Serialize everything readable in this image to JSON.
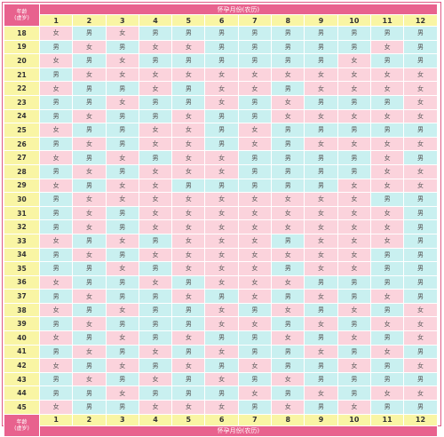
{
  "header": {
    "title": "怀孕月份(农历)",
    "age_label": "年龄\n(虚岁)"
  },
  "footer": {
    "title": "怀孕月份(农历)",
    "age_label": "年龄\n(虚岁)"
  },
  "months": [
    "1",
    "2",
    "3",
    "4",
    "5",
    "6",
    "7",
    "8",
    "9",
    "10",
    "11",
    "12"
  ],
  "labels": {
    "boy": "男",
    "girl": "女"
  },
  "colors": {
    "boy": "#c9f0f0",
    "girl": "#fbd3dc",
    "header": "#e8628e",
    "axis": "#f9f5a4"
  },
  "rows": [
    {
      "age": "18",
      "cells": [
        "女",
        "男",
        "女",
        "男",
        "男",
        "男",
        "男",
        "男",
        "男",
        "男",
        "男",
        "男"
      ]
    },
    {
      "age": "19",
      "cells": [
        "男",
        "女",
        "男",
        "女",
        "女",
        "男",
        "男",
        "男",
        "男",
        "男",
        "女",
        "男"
      ]
    },
    {
      "age": "20",
      "cells": [
        "女",
        "男",
        "女",
        "男",
        "男",
        "男",
        "男",
        "男",
        "男",
        "女",
        "男",
        "男"
      ]
    },
    {
      "age": "21",
      "cells": [
        "男",
        "女",
        "女",
        "女",
        "女",
        "女",
        "女",
        "女",
        "女",
        "女",
        "女",
        "女"
      ]
    },
    {
      "age": "22",
      "cells": [
        "女",
        "男",
        "男",
        "女",
        "男",
        "女",
        "女",
        "男",
        "女",
        "女",
        "女",
        "女"
      ]
    },
    {
      "age": "23",
      "cells": [
        "男",
        "男",
        "女",
        "男",
        "男",
        "女",
        "男",
        "女",
        "男",
        "男",
        "男",
        "女"
      ]
    },
    {
      "age": "24",
      "cells": [
        "男",
        "女",
        "男",
        "男",
        "女",
        "男",
        "男",
        "女",
        "女",
        "女",
        "女",
        "女"
      ]
    },
    {
      "age": "25",
      "cells": [
        "女",
        "男",
        "男",
        "女",
        "女",
        "男",
        "女",
        "男",
        "男",
        "男",
        "男",
        "男"
      ]
    },
    {
      "age": "26",
      "cells": [
        "男",
        "女",
        "男",
        "女",
        "女",
        "男",
        "女",
        "男",
        "女",
        "女",
        "女",
        "女"
      ]
    },
    {
      "age": "27",
      "cells": [
        "女",
        "男",
        "女",
        "男",
        "女",
        "女",
        "男",
        "男",
        "男",
        "男",
        "女",
        "男"
      ]
    },
    {
      "age": "28",
      "cells": [
        "男",
        "女",
        "男",
        "女",
        "女",
        "女",
        "男",
        "男",
        "男",
        "男",
        "女",
        "女"
      ]
    },
    {
      "age": "29",
      "cells": [
        "女",
        "男",
        "女",
        "女",
        "男",
        "男",
        "男",
        "男",
        "男",
        "女",
        "女",
        "女"
      ]
    },
    {
      "age": "30",
      "cells": [
        "男",
        "女",
        "女",
        "女",
        "女",
        "女",
        "女",
        "女",
        "女",
        "女",
        "男",
        "男"
      ]
    },
    {
      "age": "31",
      "cells": [
        "男",
        "女",
        "男",
        "女",
        "女",
        "女",
        "女",
        "女",
        "女",
        "女",
        "女",
        "男"
      ]
    },
    {
      "age": "32",
      "cells": [
        "男",
        "女",
        "男",
        "女",
        "女",
        "女",
        "女",
        "女",
        "女",
        "女",
        "女",
        "男"
      ]
    },
    {
      "age": "33",
      "cells": [
        "女",
        "男",
        "女",
        "男",
        "女",
        "女",
        "女",
        "男",
        "女",
        "女",
        "女",
        "男"
      ]
    },
    {
      "age": "34",
      "cells": [
        "男",
        "女",
        "男",
        "女",
        "女",
        "女",
        "女",
        "女",
        "女",
        "女",
        "男",
        "男"
      ]
    },
    {
      "age": "35",
      "cells": [
        "男",
        "男",
        "女",
        "男",
        "女",
        "女",
        "女",
        "男",
        "女",
        "女",
        "男",
        "男"
      ]
    },
    {
      "age": "36",
      "cells": [
        "女",
        "男",
        "男",
        "女",
        "男",
        "女",
        "女",
        "女",
        "男",
        "男",
        "男",
        "男"
      ]
    },
    {
      "age": "37",
      "cells": [
        "男",
        "女",
        "男",
        "男",
        "女",
        "男",
        "女",
        "男",
        "女",
        "男",
        "女",
        "男"
      ]
    },
    {
      "age": "38",
      "cells": [
        "女",
        "男",
        "女",
        "男",
        "男",
        "女",
        "男",
        "女",
        "男",
        "女",
        "男",
        "女"
      ]
    },
    {
      "age": "39",
      "cells": [
        "男",
        "女",
        "男",
        "男",
        "男",
        "女",
        "女",
        "男",
        "女",
        "男",
        "女",
        "女"
      ]
    },
    {
      "age": "40",
      "cells": [
        "女",
        "男",
        "女",
        "男",
        "女",
        "男",
        "男",
        "女",
        "男",
        "女",
        "男",
        "女"
      ]
    },
    {
      "age": "41",
      "cells": [
        "男",
        "女",
        "男",
        "女",
        "男",
        "女",
        "男",
        "男",
        "女",
        "男",
        "女",
        "男"
      ]
    },
    {
      "age": "42",
      "cells": [
        "女",
        "男",
        "女",
        "男",
        "女",
        "男",
        "女",
        "男",
        "男",
        "女",
        "男",
        "女"
      ]
    },
    {
      "age": "43",
      "cells": [
        "男",
        "女",
        "男",
        "女",
        "男",
        "女",
        "男",
        "女",
        "男",
        "男",
        "男",
        "男"
      ]
    },
    {
      "age": "44",
      "cells": [
        "男",
        "男",
        "女",
        "男",
        "男",
        "男",
        "女",
        "男",
        "女",
        "男",
        "女",
        "女"
      ]
    },
    {
      "age": "45",
      "cells": [
        "女",
        "男",
        "男",
        "女",
        "女",
        "女",
        "男",
        "女",
        "男",
        "女",
        "男",
        "男"
      ]
    }
  ]
}
